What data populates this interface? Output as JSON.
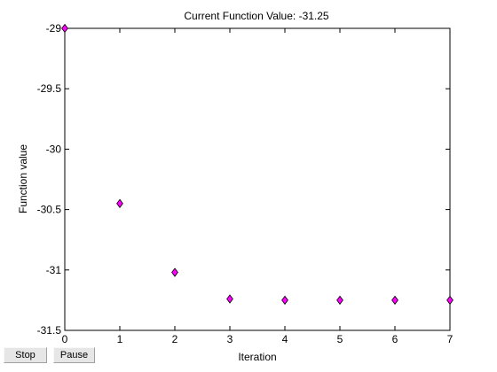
{
  "buttons": {
    "stop_label": "Stop",
    "pause_label": "Pause"
  },
  "chart_data": {
    "type": "scatter",
    "title": "Current Function Value: -31.25",
    "xlabel": "Iteration",
    "ylabel": "Function value",
    "xlim": [
      0,
      7
    ],
    "ylim": [
      -31.5,
      -29
    ],
    "xticks": [
      0,
      1,
      2,
      3,
      4,
      5,
      6,
      7
    ],
    "yticks": [
      -29,
      -29.5,
      -30,
      -30.5,
      -31,
      -31.5
    ],
    "xtick_labels": [
      "0",
      "1",
      "2",
      "3",
      "4",
      "5",
      "6",
      "7"
    ],
    "ytick_labels": [
      "-29",
      "-29.5",
      "-30",
      "-30.5",
      "-31",
      "-31.5"
    ],
    "grid": false,
    "marker": "diamond",
    "marker_color": "#ff00ff",
    "series": [
      {
        "x": [
          0,
          1,
          2,
          3,
          4,
          5,
          6,
          7
        ],
        "y": [
          -29.0,
          -30.45,
          -31.02,
          -31.24,
          -31.25,
          -31.25,
          -31.25,
          -31.25
        ]
      }
    ]
  }
}
